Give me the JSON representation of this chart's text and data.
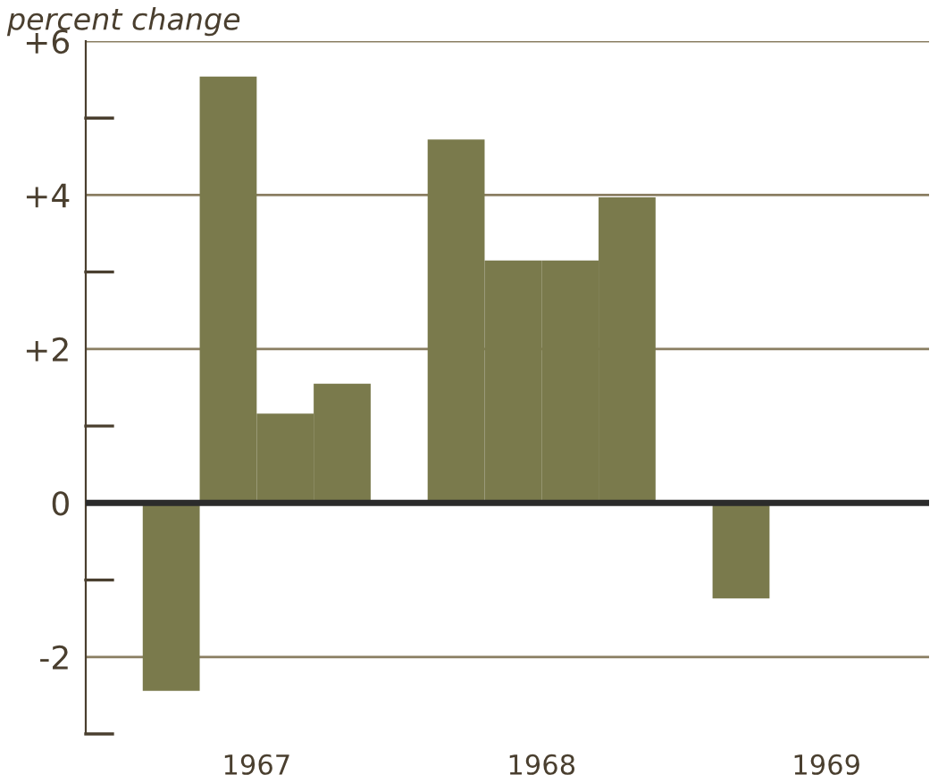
{
  "chart_data": {
    "type": "bar",
    "ylabel": "percent change",
    "categories": [
      "1967",
      "1968",
      "1969"
    ],
    "series": [
      {
        "color": "#7a7a4c",
        "values": [
          -2.44,
          4.72,
          -1.24
        ]
      },
      {
        "color": "#7a7a4c",
        "values": [
          5.54,
          3.15,
          null
        ]
      },
      {
        "color": "#7a7a4c",
        "values": [
          1.16,
          3.15,
          null
        ]
      },
      {
        "color": "#7a7a4c",
        "values": [
          1.55,
          3.97,
          null
        ]
      }
    ],
    "ylim": [
      -3,
      6
    ],
    "yticks": [
      {
        "value": -3,
        "label": null
      },
      -2,
      {
        "value": -1,
        "label": null
      },
      0,
      {
        "value": 1,
        "label": null
      },
      {
        "value": 2,
        "label": "+2"
      },
      {
        "value": 3,
        "label": null
      },
      {
        "value": 4,
        "label": "+4"
      },
      {
        "value": 5,
        "label": null
      },
      {
        "value": 6,
        "label": "+6"
      }
    ],
    "grid": "y",
    "ref_lines": [
      {
        "axis": "y",
        "value": 0,
        "color": "#2b2b2b"
      }
    ]
  }
}
